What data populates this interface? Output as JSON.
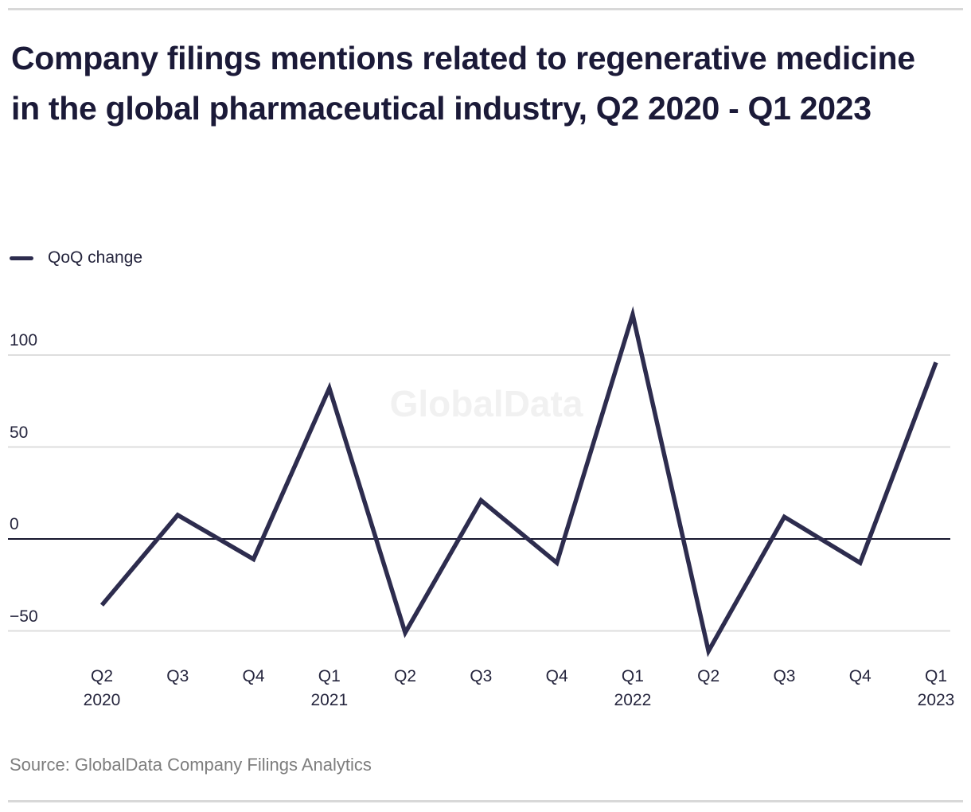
{
  "header": {
    "title": "Company filings mentions related to regenerative medicine in the global pharmaceutical industry, Q2 2020 - Q1 2023"
  },
  "legend": {
    "label": "QoQ change"
  },
  "watermark": "GlobalData",
  "source": {
    "text": "Source: GlobalData Company Filings Analytics"
  },
  "colors": {
    "line": "#2d2c4e",
    "title_text": "#1b1a38",
    "axis_text": "#26263e",
    "grid": "#dedede",
    "zero_line": "#16162e",
    "divider": "#d8d8d8",
    "source_text": "#7d7d7d",
    "watermark_text": "#f1f1f1",
    "background": "#ffffff"
  },
  "chart_data": {
    "type": "line",
    "title": "Company filings mentions related to regenerative medicine in the global pharmaceutical industry, Q2 2020 - Q1 2023",
    "xlabel": "",
    "ylabel": "",
    "categories": [
      "Q2 2020",
      "Q3 2020",
      "Q4 2020",
      "Q1 2021",
      "Q2 2021",
      "Q3 2021",
      "Q4 2021",
      "Q1 2022",
      "Q2 2022",
      "Q3 2022",
      "Q4 2022",
      "Q1 2023"
    ],
    "series": [
      {
        "name": "QoQ change",
        "values": [
          -36,
          13,
          -11,
          82,
          -51,
          21,
          -13,
          122,
          -61,
          12,
          -13,
          96
        ]
      }
    ],
    "x_ticks": [
      {
        "label": "Q2",
        "year": "2020"
      },
      {
        "label": "Q3"
      },
      {
        "label": "Q4"
      },
      {
        "label": "Q1",
        "year": "2021"
      },
      {
        "label": "Q2"
      },
      {
        "label": "Q3"
      },
      {
        "label": "Q4"
      },
      {
        "label": "Q1",
        "year": "2022"
      },
      {
        "label": "Q2"
      },
      {
        "label": "Q3"
      },
      {
        "label": "Q4"
      },
      {
        "label": "Q1",
        "year": "2023"
      }
    ],
    "y_ticks": [
      100,
      50,
      0,
      -50
    ],
    "ylim": [
      -70,
      130
    ],
    "grid": "horizontal",
    "legend_position": "top-left"
  }
}
